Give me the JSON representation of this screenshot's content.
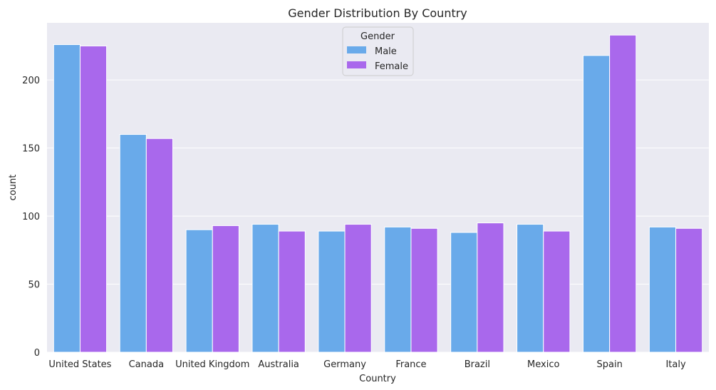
{
  "chart_data": {
    "type": "bar",
    "title": "Gender Distribution By Country",
    "xlabel": "Country",
    "ylabel": "count",
    "categories": [
      "United States",
      "Canada",
      "United Kingdom",
      "Australia",
      "Germany",
      "France",
      "Brazil",
      "Mexico",
      "Spain",
      "Italy"
    ],
    "series": [
      {
        "name": "Male",
        "values": [
          226,
          160,
          90,
          94,
          89,
          92,
          88,
          94,
          218,
          92
        ]
      },
      {
        "name": "Female",
        "values": [
          225,
          157,
          93,
          89,
          94,
          91,
          95,
          89,
          233,
          91
        ]
      }
    ],
    "ylim": [
      0,
      242
    ],
    "yticks": [
      0,
      50,
      100,
      150,
      200
    ],
    "grid": true,
    "legend": {
      "title": "Gender",
      "placement": "top-center"
    },
    "colors": {
      "Male": "#69aaea",
      "Female": "#a968ec",
      "plot_background": "#eaeaf2",
      "grid": "#ffffff"
    }
  }
}
